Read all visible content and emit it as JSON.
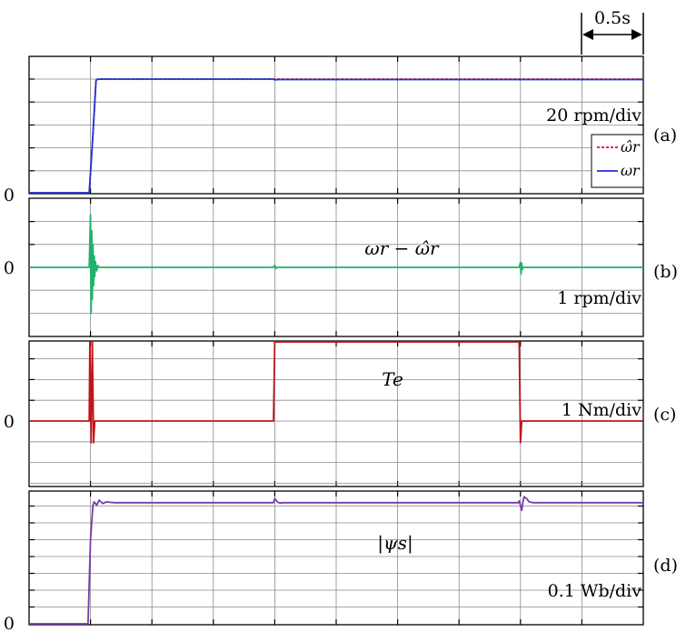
{
  "time_scale_label": "0.5s",
  "chart_data": [
    {
      "id": "a",
      "type": "line",
      "panel_label": "(a)",
      "scale_label": "20 rpm/div",
      "zero_label": "0",
      "grid": true,
      "x_divisions": 10,
      "y_divisions": 5,
      "x_range_s": [
        0,
        5
      ],
      "ylim_div": [
        -0.15,
        5.1
      ],
      "legend": {
        "position": "right",
        "entries": [
          "ω̂r",
          "ωr"
        ]
      },
      "series": [
        {
          "name": "ω̂r",
          "color": "#e0101f",
          "dash": "3,2",
          "x": [
            0,
            0.49,
            0.52,
            0.545,
            0.56,
            5.0
          ],
          "y": [
            0,
            0,
            2.6,
            4.95,
            5.0,
            5.0
          ]
        },
        {
          "name": "ωr",
          "color": "#1f33d6",
          "x": [
            0,
            0.49,
            0.52,
            0.545,
            0.56,
            1.99,
            2.0,
            2.03,
            5.0
          ],
          "y": [
            0,
            0,
            2.6,
            4.95,
            5.0,
            5.0,
            4.97,
            4.98,
            4.98
          ]
        }
      ]
    },
    {
      "id": "b",
      "type": "line",
      "panel_label": "(b)",
      "scale_label": "1 rpm/div",
      "annotation": "ωr − ω̂r",
      "zero_label": "0",
      "grid": true,
      "x_divisions": 10,
      "y_divisions": 5,
      "x_range_s": [
        0,
        5
      ],
      "ylim_div": [
        -2.1,
        2.1
      ],
      "series": [
        {
          "name": "",
          "color": "#1fb36a",
          "x": [
            0,
            0.49,
            0.5,
            0.505,
            0.51,
            0.515,
            0.52,
            0.525,
            0.53,
            0.535,
            0.54,
            0.55,
            0.56,
            0.57,
            0.58,
            1.99,
            2.0,
            2.01,
            2.02,
            3.99,
            4.0,
            4.005,
            4.01,
            4.015,
            4.02,
            5.0
          ],
          "y": [
            0,
            0,
            2.3,
            -2.0,
            1.6,
            -1.4,
            1.0,
            -0.8,
            0.5,
            -0.4,
            0.25,
            -0.15,
            0.08,
            0,
            0,
            0,
            0.09,
            -0.05,
            0,
            0,
            0.22,
            -0.28,
            0.18,
            -0.1,
            0,
            0
          ]
        }
      ]
    },
    {
      "id": "c",
      "type": "line",
      "panel_label": "(c)",
      "scale_label": "1 Nm/div",
      "annotation": "Te",
      "zero_label": "0",
      "grid": true,
      "x_divisions": 10,
      "y_divisions": 6,
      "x_range_s": [
        0,
        5
      ],
      "ylim_div": [
        -1.05,
        5.15
      ],
      "series": [
        {
          "name": "",
          "color": "#c0151a",
          "x": [
            0,
            0.49,
            0.495,
            0.505,
            0.515,
            0.525,
            0.535,
            0.545,
            1.99,
            2.0,
            2.01,
            3.99,
            4.0,
            4.01,
            5.0
          ],
          "y": [
            0,
            0,
            5.15,
            -1.05,
            5.15,
            -1.05,
            0,
            0,
            0,
            4.5,
            4.5,
            4.5,
            -1.05,
            0,
            0
          ]
        }
      ]
    },
    {
      "id": "d",
      "type": "line",
      "panel_label": "(d)",
      "scale_label": "0.1 Wb/div",
      "annotation": "|ψs|",
      "zero_label": "0",
      "grid": true,
      "x_divisions": 10,
      "y_divisions": 8,
      "x_range_s": [
        0,
        5
      ],
      "ylim_div": [
        0,
        7.9
      ],
      "series": [
        {
          "name": "",
          "color": "#7a3aa8",
          "x": [
            0,
            0.48,
            0.5,
            0.52,
            0.53,
            0.55,
            0.57,
            0.6,
            0.63,
            0.66,
            0.7,
            1.99,
            2.0,
            2.02,
            2.04,
            2.07,
            3.98,
            3.99,
            4.0,
            4.01,
            4.02,
            4.03,
            4.05,
            4.07,
            4.1,
            5.0
          ],
          "y": [
            0,
            0,
            5.0,
            7.05,
            7.25,
            7.05,
            7.35,
            7.15,
            7.25,
            7.22,
            7.2,
            7.2,
            7.45,
            7.25,
            7.18,
            7.2,
            7.2,
            7.3,
            7.05,
            6.75,
            7.25,
            7.55,
            7.45,
            7.25,
            7.2,
            7.2
          ]
        }
      ]
    }
  ]
}
